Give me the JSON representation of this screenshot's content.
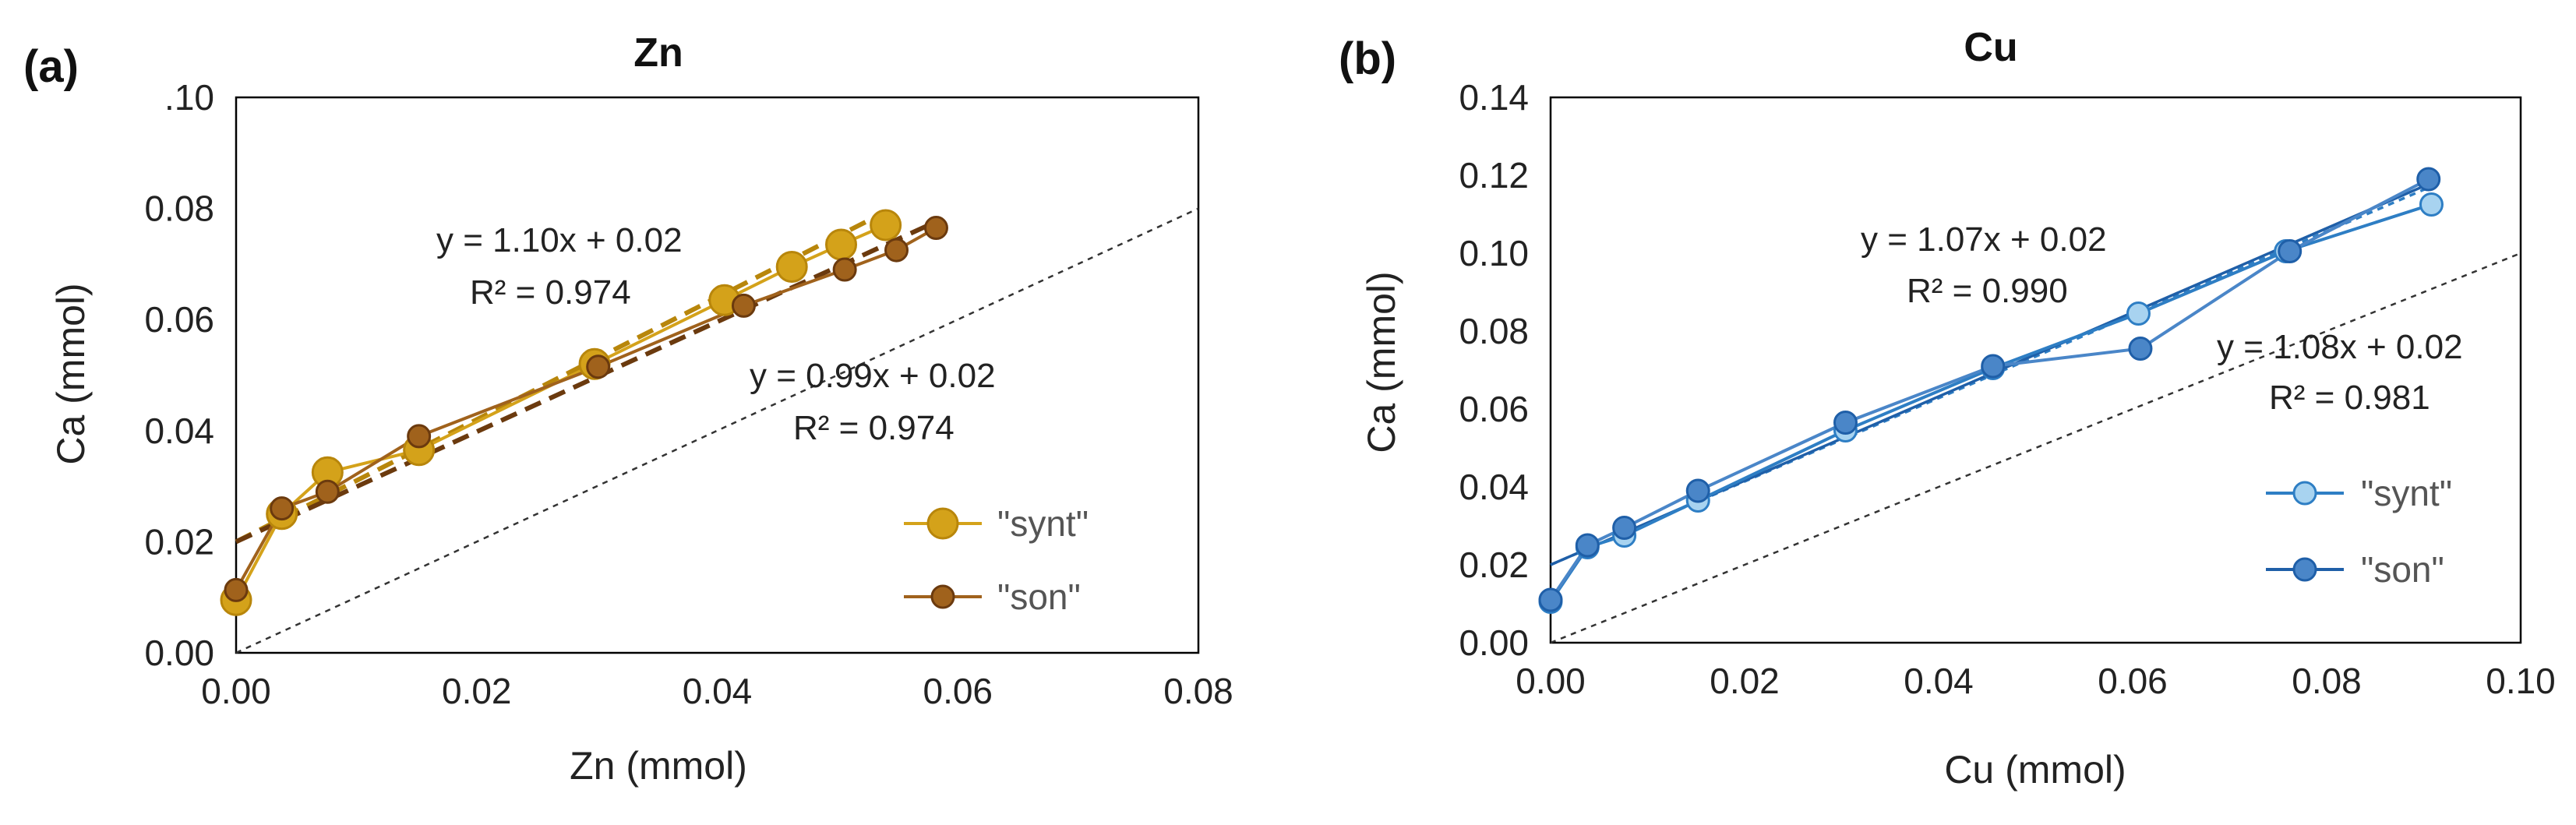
{
  "chart_data": [
    {
      "type": "scatter",
      "panel_label": "(a)",
      "title": "Zn",
      "xlabel": "Zn (mmol)",
      "ylabel": "Ca (mmol)",
      "xlim": [
        0,
        0.08
      ],
      "ylim": [
        0,
        0.1
      ],
      "xticks": [
        0.0,
        0.02,
        0.04,
        0.06,
        0.08
      ],
      "xtick_labels": [
        "0.00",
        "0.02",
        "0.04",
        "0.06",
        "0.08"
      ],
      "yticks": [
        0.0,
        0.02,
        0.04,
        0.06,
        0.08,
        0.1
      ],
      "ytick_labels": [
        "0.00",
        "0.02",
        "0.04",
        "0.06",
        "0.08",
        ".10"
      ],
      "reference_line": {
        "style": "dotted",
        "slope": 1,
        "intercept": 0
      },
      "series": [
        {
          "name": "\"synt\"",
          "color": "#D4A21A",
          "edge_color": "#B8860B",
          "marker_size": "large",
          "x": [
            0.0,
            0.0038,
            0.0076,
            0.0152,
            0.0298,
            0.0406,
            0.0462,
            0.0503,
            0.054
          ],
          "y": [
            0.0095,
            0.025,
            0.0325,
            0.0365,
            0.052,
            0.0635,
            0.0695,
            0.0735,
            0.077
          ],
          "trendline": {
            "slope": 1.1,
            "intercept": 0.02,
            "equation": "y = 1.10x + 0.02",
            "r2": "R² = 0.974",
            "style": "dashed"
          }
        },
        {
          "name": "\"son\"",
          "color": "#A0621C",
          "edge_color": "#6B3A0E",
          "marker_size": "small",
          "x": [
            0.0,
            0.0038,
            0.0076,
            0.0152,
            0.0301,
            0.0422,
            0.0506,
            0.0549,
            0.0582
          ],
          "y": [
            0.0113,
            0.026,
            0.029,
            0.039,
            0.0515,
            0.0625,
            0.069,
            0.0725,
            0.0765
          ],
          "trendline": {
            "slope": 0.99,
            "intercept": 0.02,
            "equation": "y = 0.99x + 0.02",
            "r2": "R² = 0.974",
            "style": "dashed"
          }
        }
      ],
      "legend": {
        "placement": "lower-right",
        "entries": [
          "\"synt\"",
          "\"son\""
        ]
      }
    },
    {
      "type": "scatter",
      "panel_label": "(b)",
      "title": "Cu",
      "xlabel": "Cu (mmol)",
      "ylabel": "Ca (mmol)",
      "xlim": [
        0,
        0.1
      ],
      "ylim": [
        0,
        0.14
      ],
      "xticks": [
        0.0,
        0.02,
        0.04,
        0.06,
        0.08,
        0.1
      ],
      "xtick_labels": [
        "0.00",
        "0.02",
        "0.04",
        "0.06",
        "0.08",
        "0.10"
      ],
      "yticks": [
        0.0,
        0.02,
        0.04,
        0.06,
        0.08,
        0.1,
        0.12,
        0.14
      ],
      "ytick_labels": [
        "0.00",
        "0.02",
        "0.04",
        "0.06",
        "0.08",
        "0.10",
        "0.12",
        "0.14"
      ],
      "reference_line": {
        "style": "dotted",
        "slope": 1,
        "intercept": 0
      },
      "series": [
        {
          "name": "\"synt\"",
          "color": "#A8D3F0",
          "edge_color": "#2E7EC4",
          "marker_size": "small",
          "x": [
            0.0,
            0.0038,
            0.0076,
            0.0152,
            0.0304,
            0.0456,
            0.0606,
            0.0758,
            0.0908
          ],
          "y": [
            0.0105,
            0.0245,
            0.0275,
            0.0365,
            0.0545,
            0.0705,
            0.0845,
            0.1005,
            0.1125
          ],
          "trendline": {
            "slope": 1.07,
            "intercept": 0.02,
            "equation": "y = 1.07x + 0.02",
            "r2": "R² = 0.990",
            "style": "dotted"
          }
        },
        {
          "name": "\"son\"",
          "color": "#4A86C8",
          "edge_color": "#1F5FA8",
          "marker_size": "small",
          "x": [
            0.0,
            0.0038,
            0.0076,
            0.0152,
            0.0304,
            0.0456,
            0.0608,
            0.0762,
            0.0905
          ],
          "y": [
            0.011,
            0.025,
            0.0295,
            0.039,
            0.0565,
            0.071,
            0.0755,
            0.1005,
            0.119
          ],
          "trendline": {
            "slope": 1.08,
            "intercept": 0.02,
            "equation": "y = 1.08x + 0.02",
            "r2": "R² = 0.981",
            "style": "solid"
          }
        }
      ],
      "legend": {
        "placement": "lower-right",
        "entries": [
          "\"synt\"",
          "\"son\""
        ]
      }
    }
  ]
}
